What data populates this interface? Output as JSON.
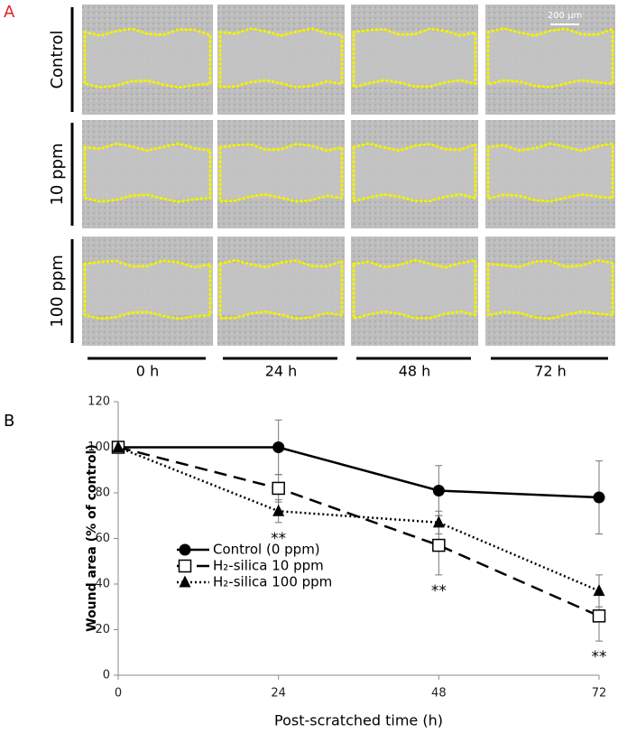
{
  "panel_a": {
    "label": "A",
    "rows": [
      "Control",
      "10 ppm",
      "100 ppm"
    ],
    "columns": [
      "0 h",
      "24 h",
      "48 h",
      "72 h"
    ],
    "scale_bar": "200 µm"
  },
  "panel_b_label": "B",
  "chart_data": {
    "type": "line",
    "x_label": "Post-scratched time (h)",
    "y_label": "Wound area (% of control)",
    "x": [
      0,
      24,
      48,
      72
    ],
    "xlim": [
      0,
      72
    ],
    "xticks": [
      0,
      24,
      48,
      72
    ],
    "ylim": [
      0,
      120
    ],
    "yticks": [
      0,
      20,
      40,
      60,
      80,
      100,
      120
    ],
    "series": [
      {
        "name": "Control (0 ppm)",
        "color": "#000000",
        "dash": "solid",
        "marker": "circle",
        "values": [
          100,
          100,
          81,
          78
        ],
        "errors": [
          0,
          12,
          11,
          16
        ]
      },
      {
        "name": "H₂-silica 10 ppm",
        "color": "#000000",
        "dash": "dashed",
        "marker": "square",
        "values": [
          100,
          82,
          57,
          26
        ],
        "errors": [
          0,
          6,
          13,
          11
        ]
      },
      {
        "name": "H₂-silica 100 ppm",
        "color": "#000000",
        "dash": "dotted",
        "marker": "triangle",
        "values": [
          100,
          72,
          67,
          37
        ],
        "errors": [
          0,
          5,
          5,
          7
        ]
      }
    ],
    "annotations": [
      {
        "text": "**",
        "x": 24
      },
      {
        "text": "**",
        "x": 48
      },
      {
        "text": "**",
        "x": 72
      }
    ]
  }
}
